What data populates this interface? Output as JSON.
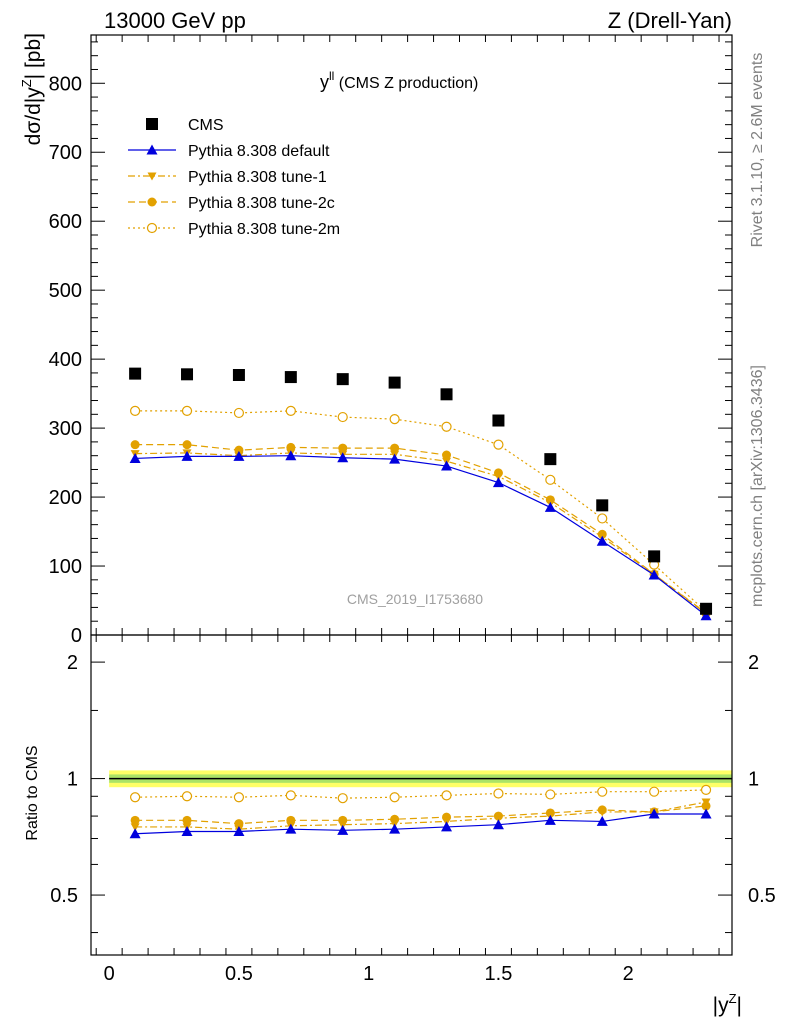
{
  "header": {
    "left": "13000 GeV pp",
    "right": "Z (Drell-Yan)"
  },
  "side_labels": {
    "rivet": "Rivet 3.1.10, ≥ 2.6M events",
    "mcplots": "mcplots.cern.ch [arXiv:1306.3436]"
  },
  "chart_data": [
    {
      "type": "scatter",
      "title_main": "y",
      "title_sup": "ll",
      "title_rest": " (CMS Z production)",
      "analysis_tag": "CMS_2019_I1753680",
      "ylabel": "dσ/d|y^Z| [pb]",
      "ylabel_parts": {
        "pre": "dσ/d|y",
        "sup": "Z",
        "post": "| [pb]"
      },
      "xlim": [
        -0.07,
        2.4
      ],
      "ylim": [
        0,
        870
      ],
      "yticks": [
        0,
        100,
        200,
        300,
        400,
        500,
        600,
        700,
        800
      ],
      "ytick_labels": [
        "0",
        "100",
        "200",
        "300",
        "400",
        "500",
        "600",
        "700",
        "800"
      ],
      "x": [
        0.1,
        0.3,
        0.5,
        0.7,
        0.9,
        1.1,
        1.3,
        1.5,
        1.7,
        1.9,
        2.1,
        2.3
      ],
      "legend_position": "top-left",
      "series": [
        {
          "name": "CMS",
          "color": "#000000",
          "marker": "square",
          "line": "none",
          "values": [
            379,
            378,
            377,
            374,
            371,
            366,
            349,
            311,
            255,
            188,
            114,
            38
          ]
        },
        {
          "name": "Pythia 8.308 default",
          "color": "#0000dd",
          "marker": "triangle-up",
          "line": "solid",
          "values": [
            256,
            259,
            259,
            260,
            257,
            255,
            245,
            221,
            185,
            136,
            87,
            28
          ]
        },
        {
          "name": "Pythia 8.308 tune-1",
          "color": "#e2a100",
          "marker": "triangle-down",
          "line": "dashdot",
          "values": [
            263,
            264,
            260,
            264,
            262,
            262,
            252,
            230,
            192,
            142,
            88,
            32
          ]
        },
        {
          "name": "Pythia 8.308 tune-2c",
          "color": "#e2a100",
          "marker": "circle",
          "line": "dashed",
          "values": [
            276,
            276,
            268,
            272,
            271,
            271,
            261,
            235,
            196,
            146,
            88,
            31
          ]
        },
        {
          "name": "Pythia 8.308 tune-2m",
          "color": "#e2a100",
          "marker": "circle-open",
          "line": "dotted",
          "values": [
            325,
            325,
            322,
            325,
            316,
            313,
            302,
            276,
            225,
            169,
            102,
            34
          ]
        }
      ]
    },
    {
      "type": "scatter",
      "ylabel": "Ratio to CMS",
      "xlabel": "|y^Z|",
      "xlabel_parts": {
        "pre": "|y",
        "sup": "Z",
        "post": "|"
      },
      "xlim": [
        -0.07,
        2.4
      ],
      "ylim": [
        0.35,
        2.35
      ],
      "yscale": "log",
      "yticks": [
        0.5,
        1,
        2
      ],
      "ytick_labels": [
        "0.5",
        "1",
        "2"
      ],
      "xticks": [
        0,
        0.5,
        1,
        1.5,
        2
      ],
      "xtick_labels": [
        "0",
        "0.5",
        "1",
        "1.5",
        "2"
      ],
      "x": [
        0.1,
        0.3,
        0.5,
        0.7,
        0.9,
        1.1,
        1.3,
        1.5,
        1.7,
        1.9,
        2.1,
        2.3
      ],
      "reference_band": {
        "center": 1.0,
        "inner": [
          0.975,
          1.025
        ],
        "outer": [
          0.95,
          1.05
        ],
        "inner_color": "#66cc66",
        "outer_color": "#ffff66"
      },
      "series": [
        {
          "name": "Pythia 8.308 default",
          "color": "#0000dd",
          "marker": "triangle-up",
          "line": "solid",
          "values": [
            0.72,
            0.73,
            0.73,
            0.74,
            0.735,
            0.74,
            0.75,
            0.76,
            0.78,
            0.775,
            0.81,
            0.81
          ]
        },
        {
          "name": "Pythia 8.308 tune-1",
          "color": "#e2a100",
          "marker": "triangle-down",
          "line": "dashdot",
          "values": [
            0.75,
            0.75,
            0.74,
            0.755,
            0.76,
            0.765,
            0.775,
            0.79,
            0.8,
            0.82,
            0.82,
            0.87
          ]
        },
        {
          "name": "Pythia 8.308 tune-2c",
          "color": "#e2a100",
          "marker": "circle",
          "line": "dashed",
          "values": [
            0.78,
            0.78,
            0.765,
            0.78,
            0.78,
            0.785,
            0.795,
            0.8,
            0.815,
            0.83,
            0.82,
            0.85
          ]
        },
        {
          "name": "Pythia 8.308 tune-2m",
          "color": "#e2a100",
          "marker": "circle-open",
          "line": "dotted",
          "values": [
            0.895,
            0.9,
            0.895,
            0.905,
            0.89,
            0.895,
            0.905,
            0.915,
            0.91,
            0.925,
            0.925,
            0.935
          ]
        }
      ]
    }
  ]
}
